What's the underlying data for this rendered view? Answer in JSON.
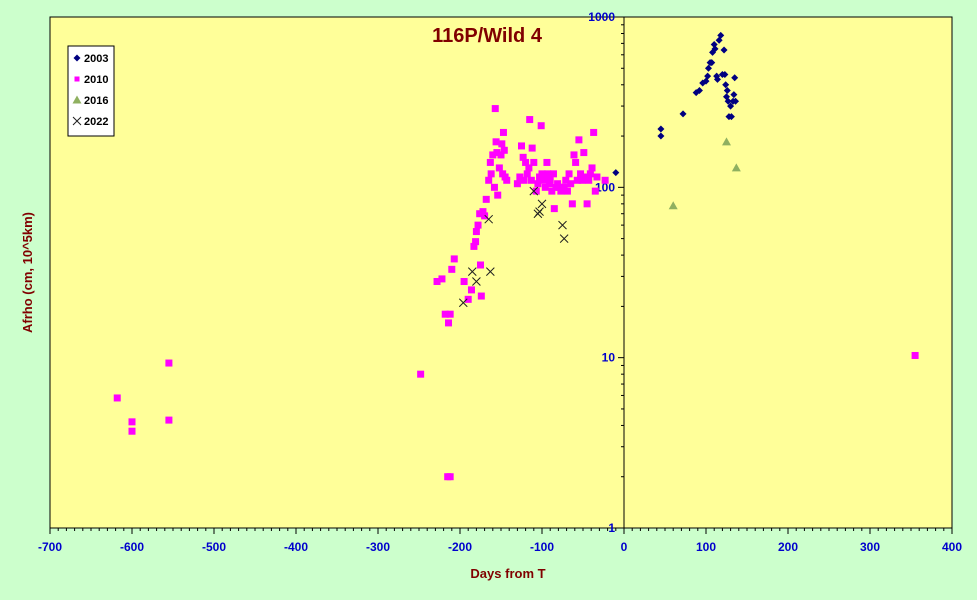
{
  "chart_data": {
    "type": "scatter",
    "title": "116P/Wild 4",
    "xlabel": "Days from T",
    "ylabel": "Afrho (cm, 10^5km)",
    "xlim": [
      -700,
      400
    ],
    "ylim": [
      1,
      1000
    ],
    "y_scale": "log",
    "x_ticks": [
      -700,
      -600,
      -500,
      -400,
      -300,
      -200,
      -100,
      0,
      100,
      200,
      300,
      400
    ],
    "x_tick_labels": [
      "-700",
      "-600",
      "-500",
      "-400",
      "-300",
      "-200",
      "-100",
      "0",
      "100",
      "200",
      "300",
      "400"
    ],
    "y_ticks": [
      1,
      10,
      100,
      1000
    ],
    "y_tick_labels": [
      "1",
      "10",
      "100",
      "1000"
    ],
    "grid": false,
    "legend_position": "top-left",
    "series": [
      {
        "name": "2003",
        "color": "#000080",
        "marker": "diamond",
        "points": [
          [
            -10,
            122
          ],
          [
            45,
            220
          ],
          [
            45,
            200
          ],
          [
            72,
            270
          ],
          [
            88,
            360
          ],
          [
            92,
            370
          ],
          [
            96,
            410
          ],
          [
            100,
            420
          ],
          [
            102,
            450
          ],
          [
            103,
            500
          ],
          [
            105,
            540
          ],
          [
            107,
            540
          ],
          [
            108,
            620
          ],
          [
            110,
            690
          ],
          [
            111,
            650
          ],
          [
            113,
            450
          ],
          [
            114,
            430
          ],
          [
            116,
            730
          ],
          [
            118,
            780
          ],
          [
            120,
            460
          ],
          [
            122,
            640
          ],
          [
            123,
            460
          ],
          [
            124,
            400
          ],
          [
            125,
            340
          ],
          [
            126,
            370
          ],
          [
            127,
            320
          ],
          [
            128,
            260
          ],
          [
            130,
            300
          ],
          [
            131,
            260
          ],
          [
            133,
            320
          ],
          [
            134,
            350
          ],
          [
            135,
            440
          ],
          [
            136,
            320
          ]
        ]
      },
      {
        "name": "2010",
        "color": "#ff00ff",
        "marker": "square",
        "points": [
          [
            -618,
            5.8
          ],
          [
            -600,
            4.2
          ],
          [
            -600,
            3.7
          ],
          [
            -555,
            9.3
          ],
          [
            -555,
            4.3
          ],
          [
            -248,
            8
          ],
          [
            -228,
            28
          ],
          [
            -222,
            29
          ],
          [
            -218,
            18
          ],
          [
            -214,
            16
          ],
          [
            -212,
            18
          ],
          [
            -210,
            33
          ],
          [
            -207,
            38
          ],
          [
            -195,
            28
          ],
          [
            -190,
            22
          ],
          [
            -186,
            25
          ],
          [
            -183,
            45
          ],
          [
            -181,
            48
          ],
          [
            -180,
            55
          ],
          [
            -178,
            60
          ],
          [
            -176,
            70
          ],
          [
            -175,
            35
          ],
          [
            -174,
            23
          ],
          [
            -172,
            72
          ],
          [
            -170,
            68
          ],
          [
            -168,
            85
          ],
          [
            -165,
            110
          ],
          [
            -163,
            140
          ],
          [
            -162,
            120
          ],
          [
            -160,
            155
          ],
          [
            -158,
            100
          ],
          [
            -157,
            290
          ],
          [
            -156,
            185
          ],
          [
            -155,
            160
          ],
          [
            -154,
            90
          ],
          [
            -152,
            130
          ],
          [
            -150,
            155
          ],
          [
            -149,
            180
          ],
          [
            -148,
            120
          ],
          [
            -147,
            210
          ],
          [
            -146,
            165
          ],
          [
            -145,
            115
          ],
          [
            -143,
            110
          ],
          [
            -130,
            105
          ],
          [
            -127,
            115
          ],
          [
            -125,
            175
          ],
          [
            -123,
            150
          ],
          [
            -122,
            110
          ],
          [
            -120,
            140
          ],
          [
            -118,
            120
          ],
          [
            -116,
            130
          ],
          [
            -115,
            250
          ],
          [
            -113,
            110
          ],
          [
            -112,
            170
          ],
          [
            -110,
            140
          ],
          [
            -107,
            95
          ],
          [
            -105,
            105
          ],
          [
            -103,
            115
          ],
          [
            -101,
            230
          ],
          [
            -100,
            120
          ],
          [
            -98,
            110
          ],
          [
            -96,
            100
          ],
          [
            -94,
            140
          ],
          [
            -93,
            120
          ],
          [
            -91,
            105
          ],
          [
            -90,
            110
          ],
          [
            -88,
            95
          ],
          [
            -86,
            120
          ],
          [
            -85,
            75
          ],
          [
            -83,
            100
          ],
          [
            -81,
            105
          ],
          [
            -79,
            100
          ],
          [
            -77,
            95
          ],
          [
            -75,
            100
          ],
          [
            -73,
            100
          ],
          [
            -71,
            110
          ],
          [
            -69,
            95
          ],
          [
            -67,
            120
          ],
          [
            -65,
            105
          ],
          [
            -63,
            80
          ],
          [
            -61,
            155
          ],
          [
            -59,
            140
          ],
          [
            -57,
            110
          ],
          [
            -55,
            190
          ],
          [
            -53,
            120
          ],
          [
            -51,
            110
          ],
          [
            -49,
            160
          ],
          [
            -47,
            115
          ],
          [
            -45,
            80
          ],
          [
            -43,
            110
          ],
          [
            -41,
            120
          ],
          [
            -39,
            130
          ],
          [
            -37,
            210
          ],
          [
            -35,
            95
          ],
          [
            -33,
            115
          ],
          [
            -23,
            110
          ],
          [
            355,
            10.3
          ],
          [
            -215,
            2
          ],
          [
            -212,
            2
          ]
        ]
      },
      {
        "name": "2016",
        "color": "#8fb060",
        "marker": "triangle",
        "points": [
          [
            60,
            78
          ],
          [
            125,
            185
          ],
          [
            137,
            130
          ]
        ]
      },
      {
        "name": "2022",
        "color": "#202020",
        "marker": "cross",
        "points": [
          [
            -196,
            21
          ],
          [
            -185,
            32
          ],
          [
            -180,
            28
          ],
          [
            -165,
            65
          ],
          [
            -163,
            32
          ],
          [
            -110,
            95
          ],
          [
            -105,
            70
          ],
          [
            -103,
            72
          ],
          [
            -100,
            80
          ],
          [
            -75,
            60
          ],
          [
            -73,
            50
          ]
        ]
      }
    ]
  }
}
